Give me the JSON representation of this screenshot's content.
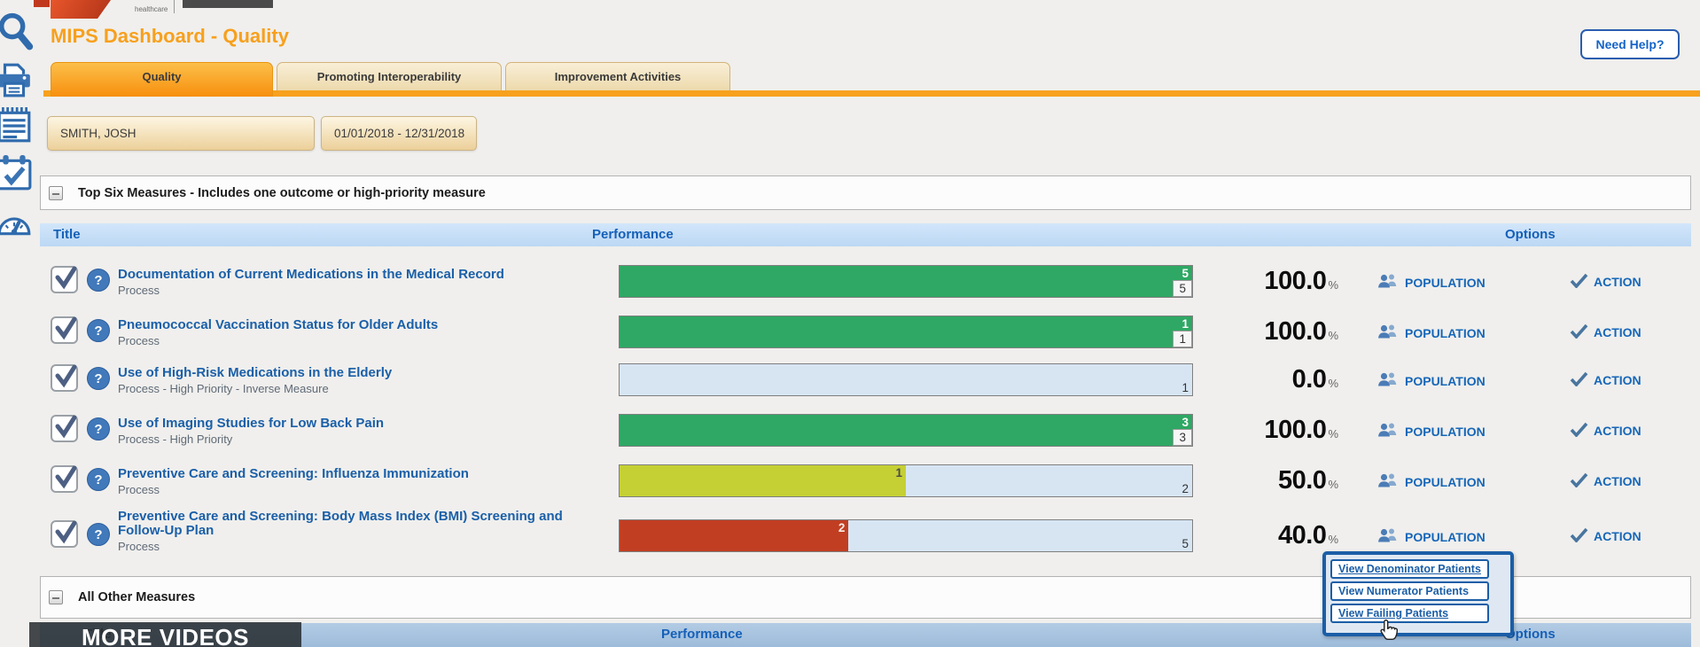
{
  "branding": {
    "logo_sub": "healthcare"
  },
  "page": {
    "title": "MIPS Dashboard - Quality",
    "need_help": "Need Help?"
  },
  "tabs": [
    {
      "label": "Quality",
      "active": true
    },
    {
      "label": "Promoting Interoperability",
      "active": false
    },
    {
      "label": "Improvement Activities",
      "active": false
    }
  ],
  "filters": {
    "provider": "SMITH, JOSH",
    "date_range": "01/01/2018 - 12/31/2018"
  },
  "sections": {
    "top_six": "Top Six Measures - Includes one outcome or high-priority measure",
    "all_other": "All Other Measures"
  },
  "table_header": {
    "title": "Title",
    "performance": "Performance",
    "options": "Options"
  },
  "row_actions": {
    "population": "POPULATION",
    "action": "ACTION",
    "percent_suffix": "%"
  },
  "measures": [
    {
      "title": "Documentation of Current Medications in the Medical Record",
      "subtitle": "Process",
      "numerator": "5",
      "denominator": "5",
      "fill_pct": 100,
      "fill_color": "#2ea864",
      "num_text_color": "#ffffff",
      "den_boxed": true,
      "percent": "100.0"
    },
    {
      "title": "Pneumococcal Vaccination Status for Older Adults",
      "subtitle": "Process",
      "numerator": "1",
      "denominator": "1",
      "fill_pct": 100,
      "fill_color": "#2ea864",
      "num_text_color": "#ffffff",
      "den_boxed": true,
      "percent": "100.0"
    },
    {
      "title": "Use of High-Risk Medications in the Elderly",
      "subtitle": "Process - High Priority - Inverse Measure",
      "numerator": "",
      "denominator": "1",
      "fill_pct": 0,
      "fill_color": "#dce9f8",
      "num_text_color": "#333333",
      "den_boxed": false,
      "percent": "0.0"
    },
    {
      "title": "Use of Imaging Studies for Low Back Pain",
      "subtitle": "Process - High Priority",
      "numerator": "3",
      "denominator": "3",
      "fill_pct": 100,
      "fill_color": "#2ea864",
      "num_text_color": "#ffffff",
      "den_boxed": true,
      "percent": "100.0"
    },
    {
      "title": "Preventive Care and Screening: Influenza Immunization",
      "subtitle": "Process",
      "numerator": "1",
      "denominator": "2",
      "fill_pct": 50,
      "fill_color": "#c5d034",
      "num_text_color": "#4a4a4a",
      "den_boxed": false,
      "percent": "50.0"
    },
    {
      "title": "Preventive Care and Screening: Body Mass Index (BMI) Screening and Follow-Up Plan",
      "subtitle": "Process",
      "numerator": "2",
      "denominator": "5",
      "fill_pct": 40,
      "fill_color": "#c13e22",
      "num_text_color": "#ffeee6",
      "den_boxed": false,
      "percent": "40.0"
    }
  ],
  "context_menu": {
    "items": [
      {
        "label": "View Denominator Patients",
        "underline": true
      },
      {
        "label": "View Numerator Patients",
        "underline": false
      },
      {
        "label": "View Failing Patients",
        "underline": true
      }
    ]
  },
  "video_overlay": {
    "label": "MORE VIDEOS"
  },
  "sidebar_icons": [
    "search-icon",
    "printer-icon",
    "notepad-icon",
    "calendar-check-icon",
    "gauge-icon"
  ],
  "colors": {
    "accent_orange": "#f7a11d",
    "link_blue": "#1560b8",
    "bar_green": "#2ea864",
    "bar_yellow": "#c5d034",
    "bar_red": "#c13e22"
  }
}
